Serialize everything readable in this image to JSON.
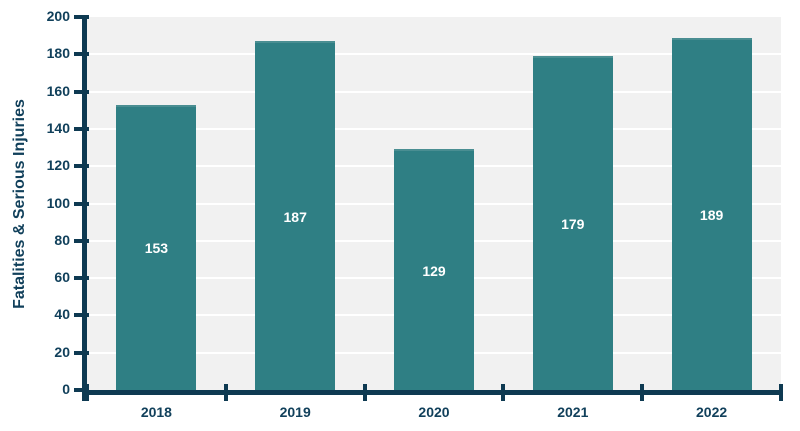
{
  "chart_data": {
    "type": "bar",
    "categories": [
      "2018",
      "2019",
      "2020",
      "2021",
      "2022"
    ],
    "values": [
      153,
      187,
      129,
      179,
      189
    ],
    "title": "",
    "xlabel": "",
    "ylabel": "Fatalities & Serious Injuries",
    "ylim": [
      0,
      200
    ],
    "ytick_step": 20,
    "yticks": [
      0,
      20,
      40,
      60,
      80,
      100,
      120,
      140,
      160,
      180,
      200
    ],
    "grid": "horizontal",
    "legend_position": "none",
    "bar_value_labels_position": "centered-inside-white"
  },
  "colors": {
    "bar": "#2F7F84",
    "bar_top_edge": "#4A8E92",
    "axis": "#0E3A52",
    "text": "#11405B",
    "plot_bg": "#F1F1F1",
    "grid": "#FFFFFF",
    "value_label": "#FFFFFF",
    "page_bg": "#FFFFFF"
  }
}
